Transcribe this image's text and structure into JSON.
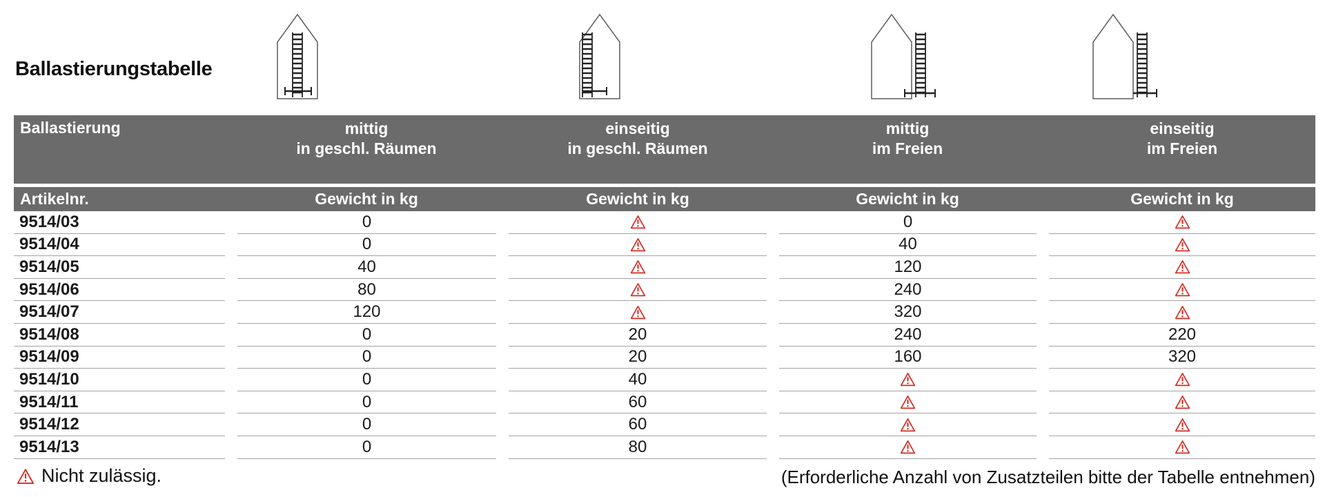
{
  "title": "Ballastierungstabelle",
  "table": {
    "corner_header": "Ballastierung",
    "article_header": "Artikelnr.",
    "weight_header": "Gewicht in kg",
    "columns": [
      {
        "line1": "mittig",
        "line2": "in geschl. Räumen",
        "icon": "house-ladder-centered-indoor-icon"
      },
      {
        "line1": "einseitig",
        "line2": "in geschl. Räumen",
        "icon": "house-ladder-one-side-indoor-icon"
      },
      {
        "line1": "mittig",
        "line2": "im Freien",
        "icon": "house-ladder-centered-outdoor-icon"
      },
      {
        "line1": "einseitig",
        "line2": "im Freien",
        "icon": "house-ladder-one-side-outdoor-icon"
      }
    ],
    "warning_cell_meaning": "Nicht zulässig.",
    "rows": [
      {
        "article": "9514/03",
        "values": [
          "0",
          "warning",
          "0",
          "warning"
        ]
      },
      {
        "article": "9514/04",
        "values": [
          "0",
          "warning",
          "40",
          "warning"
        ]
      },
      {
        "article": "9514/05",
        "values": [
          "40",
          "warning",
          "120",
          "warning"
        ]
      },
      {
        "article": "9514/06",
        "values": [
          "80",
          "warning",
          "240",
          "warning"
        ]
      },
      {
        "article": "9514/07",
        "values": [
          "120",
          "warning",
          "320",
          "warning"
        ]
      },
      {
        "article": "9514/08",
        "values": [
          "0",
          "20",
          "240",
          "220"
        ]
      },
      {
        "article": "9514/09",
        "values": [
          "0",
          "20",
          "160",
          "320"
        ]
      },
      {
        "article": "9514/10",
        "values": [
          "0",
          "40",
          "warning",
          "warning"
        ]
      },
      {
        "article": "9514/11",
        "values": [
          "0",
          "60",
          "warning",
          "warning"
        ]
      },
      {
        "article": "9514/12",
        "values": [
          "0",
          "60",
          "warning",
          "warning"
        ]
      },
      {
        "article": "9514/13",
        "values": [
          "0",
          "80",
          "warning",
          "warning"
        ]
      }
    ]
  },
  "legend": {
    "warning_label": "Nicht zulässig.",
    "warning_icon": "warning-triangle-icon"
  },
  "footnote": "(Erforderliche Anzahl von Zusatzteilen bitte der Tabelle entnehmen)",
  "colors": {
    "header_grey": "#6b6b6b",
    "warning_red": "#d22d23",
    "row_line_grey": "#a3a3a3",
    "text_black": "#1a1a1a"
  }
}
